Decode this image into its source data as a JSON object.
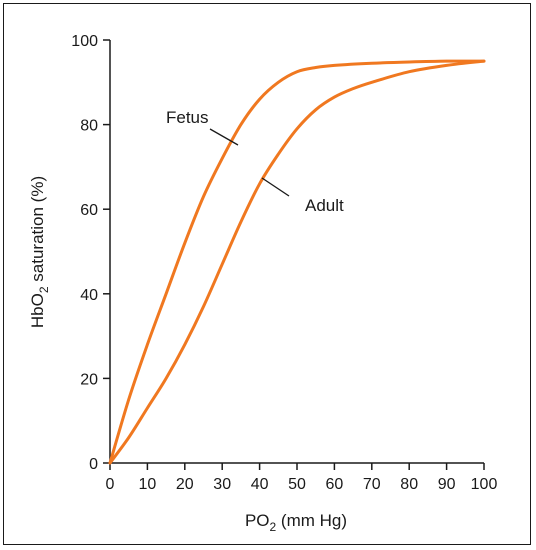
{
  "chart_data": {
    "type": "line",
    "xlabel": "PO",
    "xlabel_sub": "2",
    "xlabel_rest": " (mm Hg)",
    "ylabel": "HbO",
    "ylabel_sub": "2",
    "ylabel_rest": " saturation (%)",
    "xlim": [
      0,
      100
    ],
    "ylim": [
      0,
      100
    ],
    "xticks": [
      0,
      10,
      20,
      30,
      40,
      50,
      60,
      70,
      80,
      90,
      100
    ],
    "yticks": [
      0,
      20,
      40,
      60,
      80,
      100
    ],
    "grid": false,
    "colors": {
      "curve": "#f07820",
      "axis": "#1a1a1a"
    },
    "series": [
      {
        "id": "fetus",
        "x": [
          0,
          5,
          10,
          15,
          20,
          25,
          30,
          35,
          40,
          45,
          50,
          55,
          60,
          70,
          80,
          90,
          100
        ],
        "y": [
          0,
          15,
          28,
          40,
          52,
          63,
          72,
          80,
          86,
          90,
          92.5,
          93.5,
          94,
          94.5,
          94.8,
          95,
          95
        ]
      },
      {
        "id": "adult",
        "x": [
          0,
          5,
          10,
          15,
          20,
          25,
          30,
          35,
          40,
          45,
          50,
          55,
          60,
          65,
          70,
          80,
          90,
          100
        ],
        "y": [
          0,
          6,
          13,
          20,
          28,
          37,
          47,
          57,
          66,
          73,
          79,
          83.5,
          86.5,
          88.5,
          90,
          92.5,
          94,
          95
        ]
      }
    ],
    "annotations": [
      {
        "text": "Fetus",
        "series": "fetus"
      },
      {
        "text": "Adult",
        "series": "adult"
      }
    ]
  }
}
